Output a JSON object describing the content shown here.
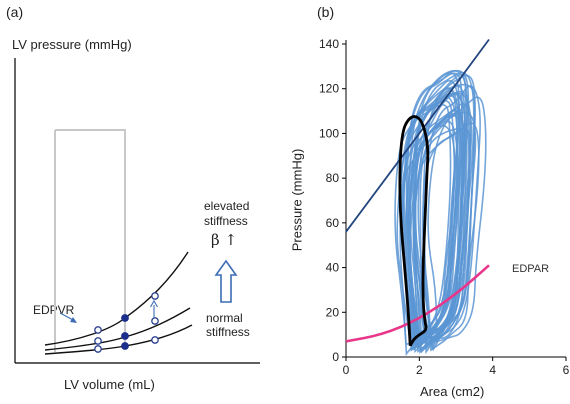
{
  "panel_a": {
    "panel_label": "(a)",
    "y_axis_label": "LV pressure (mmHg)",
    "x_axis_label": "LV volume (mL)",
    "edpvr_label": "EDPVR",
    "elevated_line1": "elevated",
    "elevated_line2": "stiffness",
    "beta_label": "β ↑",
    "normal_line1": "normal",
    "normal_line2": "stiffness"
  },
  "panel_b": {
    "panel_label": "(b)",
    "ylabel": "Pressure (mmHg)",
    "xlabel": "Area  (cm2)",
    "edpar_label": "EDPAR"
  },
  "colors": {
    "axis": "#000000",
    "loop_gray": "#c8c8c8",
    "curve": "#111111",
    "open_marker_stroke": "#2b3f8f",
    "filled_marker": "#1c2f8c",
    "arrow_blue": "#3c6cb4",
    "loops_blue": "#5b95d3",
    "loop_highlight": "#000000",
    "esp_line": "#23467f",
    "edpar_curve": "#e8368a"
  },
  "chart_data": [
    {
      "type": "line",
      "title": "",
      "xlabel": "LV volume (mL)",
      "ylabel": "LV pressure (mmHg)",
      "series": [
        {
          "x": [
            0,
            1,
            2,
            3,
            4,
            5
          ],
          "values": [
            0.2,
            0.5,
            1.0,
            1.8,
            3.0,
            4.8
          ]
        },
        {
          "x": [
            0,
            1,
            2,
            3,
            4,
            5
          ],
          "values": [
            0.1,
            0.3,
            0.6,
            1.1,
            1.9,
            3.2
          ]
        },
        {
          "x": [
            0,
            1,
            2,
            3,
            4,
            5
          ],
          "values": [
            0.05,
            0.15,
            0.35,
            0.65,
            1.1,
            1.7
          ]
        }
      ],
      "annotations": [
        "EDPVR",
        "elevated stiffness",
        "β ↑",
        "normal stiffness"
      ]
    },
    {
      "type": "line",
      "title": "",
      "xlabel": "Area  (cm2)",
      "ylabel": "Pressure (mmHg)",
      "xlim": [
        0,
        6
      ],
      "ylim": [
        0,
        140
      ],
      "xticks": [
        0,
        2,
        4,
        6
      ],
      "yticks": [
        0,
        20,
        40,
        60,
        80,
        100,
        120,
        140
      ],
      "series": [
        {
          "x": [
            1.75,
            1.7,
            1.6,
            1.45,
            1.5,
            1.75,
            2.05,
            2.25,
            2.2,
            2.15,
            2.1,
            2.1,
            2.15,
            2.2,
            2.0,
            1.85,
            1.75
          ],
          "values": [
            5,
            20,
            40,
            70,
            100,
            108,
            107,
            95,
            80,
            60,
            40,
            25,
            16,
            12,
            10,
            8,
            5
          ]
        },
        {
          "x": [
            0.0,
            1.0,
            2.0,
            3.0,
            3.9
          ],
          "values": [
            56,
            78,
            100,
            122,
            142
          ]
        },
        {
          "x": [
            0.0,
            1.0,
            2.0,
            3.0,
            3.9
          ],
          "values": [
            7,
            10,
            17,
            28,
            41
          ]
        }
      ],
      "annotations": [
        "EDPAR"
      ]
    }
  ]
}
